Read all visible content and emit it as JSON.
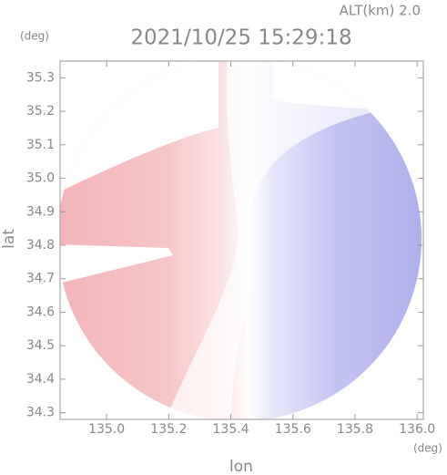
{
  "chart_data": {
    "type": "radar-image",
    "title": "2021/10/25 15:29:18",
    "subtitle": "ALT(km) 2.0",
    "xlabel": "lon",
    "ylabel": "lat",
    "xunit": "(deg)",
    "yunit": "(deg)",
    "xlim": [
      134.85,
      136.02
    ],
    "ylim": [
      34.28,
      35.35
    ],
    "xticks": [
      {
        "value": 135.0,
        "label": "135.0"
      },
      135.2,
      135.4,
      135.6,
      135.8,
      {
        "value": 136.0,
        "label": "136.0"
      }
    ],
    "yticks": [
      35.3,
      35.2,
      35.1,
      {
        "value": 35.0,
        "label": "35.0"
      },
      34.9,
      34.8,
      34.7,
      34.6,
      34.5,
      34.4,
      34.3
    ]
  }
}
